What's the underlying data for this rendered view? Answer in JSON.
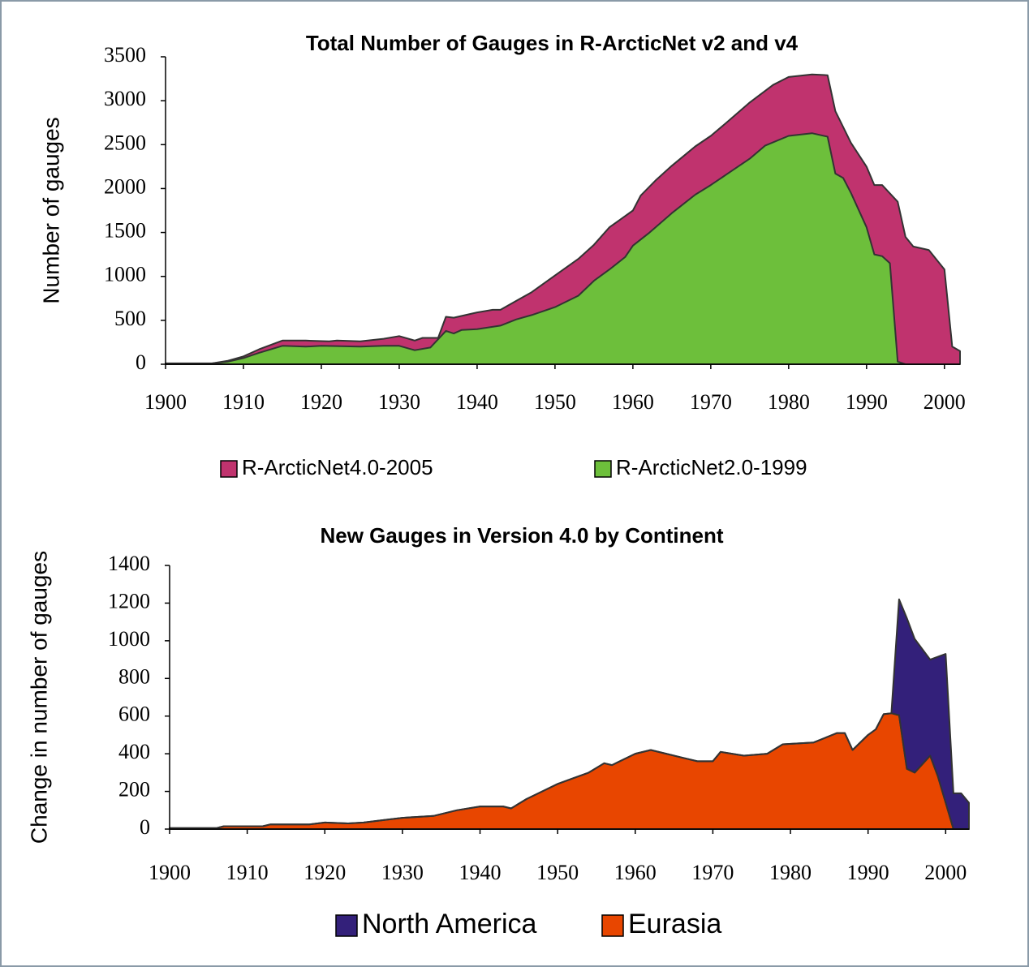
{
  "chart_data": [
    {
      "type": "area",
      "stacked": false,
      "title": "Total Number of Gauges in R-ArcticNet v2 and v4",
      "y_label": "Number of gauges",
      "xlim": [
        1900,
        2002
      ],
      "xticks": [
        1900,
        1910,
        1920,
        1930,
        1940,
        1950,
        1960,
        1970,
        1980,
        1990,
        2000
      ],
      "ylim": [
        0,
        3500
      ],
      "yticks": [
        0,
        500,
        1000,
        1500,
        2000,
        2500,
        3000,
        3500
      ],
      "legend": "bottom",
      "series": [
        {
          "name": "R-ArcticNet4.0-2005",
          "color": "#c0336e",
          "x": [
            1900,
            1906,
            1908,
            1910,
            1912,
            1915,
            1918,
            1921,
            1922,
            1925,
            1928,
            1930,
            1932,
            1933,
            1935,
            1936,
            1937,
            1940,
            1942,
            1943,
            1945,
            1947,
            1950,
            1953,
            1955,
            1957,
            1960,
            1961,
            1963,
            1965,
            1968,
            1970,
            1972,
            1975,
            1978,
            1980,
            1983,
            1985,
            1986,
            1988,
            1990,
            1991,
            1992,
            1994,
            1995,
            1996,
            1998,
            2000,
            2001,
            2002
          ],
          "values": [
            10,
            10,
            40,
            90,
            170,
            270,
            270,
            260,
            270,
            260,
            290,
            320,
            270,
            300,
            300,
            540,
            530,
            590,
            620,
            620,
            720,
            820,
            1010,
            1200,
            1360,
            1560,
            1750,
            1920,
            2100,
            2260,
            2480,
            2600,
            2750,
            2980,
            3180,
            3270,
            3300,
            3290,
            2880,
            2520,
            2250,
            2040,
            2040,
            1850,
            1450,
            1340,
            1300,
            1080,
            200,
            150
          ]
        },
        {
          "name": "R-ArcticNet2.0-1999",
          "color": "#6dbf3b",
          "x": [
            1900,
            1906,
            1908,
            1910,
            1912,
            1915,
            1918,
            1920,
            1925,
            1928,
            1930,
            1932,
            1934,
            1936,
            1937,
            1938,
            1940,
            1943,
            1945,
            1947,
            1950,
            1953,
            1955,
            1957,
            1959,
            1960,
            1962,
            1965,
            1968,
            1970,
            1972,
            1975,
            1977,
            1980,
            1983,
            1985,
            1986,
            1987,
            1988,
            1990,
            1991,
            1992,
            1993,
            1994,
            1995
          ],
          "values": [
            0,
            10,
            30,
            70,
            130,
            210,
            200,
            210,
            200,
            210,
            210,
            160,
            190,
            380,
            350,
            390,
            400,
            440,
            510,
            560,
            650,
            780,
            950,
            1080,
            1220,
            1350,
            1490,
            1720,
            1930,
            2040,
            2160,
            2340,
            2490,
            2600,
            2630,
            2590,
            2170,
            2120,
            1950,
            1560,
            1250,
            1230,
            1150,
            30,
            0
          ]
        }
      ]
    },
    {
      "type": "area",
      "stacked": true,
      "title": "New Gauges in Version 4.0 by Continent",
      "y_label": "Change in number of gauges",
      "x": [
        1900,
        1906,
        1907,
        1912,
        1913,
        1918,
        1920,
        1923,
        1925,
        1928,
        1930,
        1934,
        1937,
        1940,
        1943,
        1944,
        1946,
        1948,
        1950,
        1952,
        1954,
        1956,
        1957,
        1960,
        1962,
        1964,
        1966,
        1968,
        1970,
        1971,
        1974,
        1977,
        1979,
        1983,
        1986,
        1987,
        1988,
        1990,
        1991,
        1992,
        1993,
        1994,
        1995,
        1996,
        1998,
        1999,
        2000,
        2001,
        2002,
        2003
      ],
      "xlim": [
        1900,
        2003
      ],
      "xticks": [
        1900,
        1910,
        1920,
        1930,
        1940,
        1950,
        1960,
        1970,
        1980,
        1990,
        2000
      ],
      "ylim": [
        0,
        1400
      ],
      "yticks": [
        0,
        200,
        400,
        600,
        800,
        1000,
        1200,
        1400
      ],
      "legend": "bottom",
      "series": [
        {
          "name": "North America",
          "color": "#33207a",
          "values": [
            0,
            0,
            0,
            0,
            0,
            0,
            0,
            0,
            0,
            0,
            0,
            0,
            0,
            0,
            0,
            0,
            0,
            0,
            0,
            0,
            0,
            0,
            0,
            0,
            0,
            0,
            0,
            0,
            0,
            0,
            0,
            0,
            0,
            0,
            0,
            0,
            0,
            0,
            0,
            0,
            0,
            615,
            800,
            710,
            510,
            635,
            790,
            190,
            190,
            140
          ]
        },
        {
          "name": "Eurasia",
          "color": "#e84600",
          "values": [
            5,
            5,
            15,
            15,
            25,
            25,
            35,
            30,
            35,
            50,
            60,
            70,
            100,
            120,
            120,
            110,
            160,
            200,
            240,
            270,
            300,
            350,
            340,
            400,
            420,
            400,
            380,
            360,
            360,
            410,
            390,
            400,
            450,
            460,
            510,
            510,
            420,
            500,
            530,
            610,
            615,
            605,
            320,
            300,
            390,
            280,
            140,
            0,
            0,
            0
          ]
        }
      ]
    }
  ]
}
